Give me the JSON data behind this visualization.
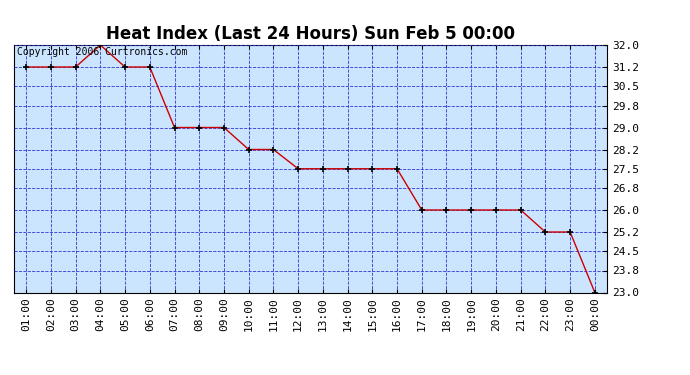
{
  "title": "Heat Index (Last 24 Hours) Sun Feb 5 00:00",
  "copyright": "Copyright 2006 Curtronics.com",
  "x_labels": [
    "01:00",
    "02:00",
    "03:00",
    "04:00",
    "05:00",
    "06:00",
    "07:00",
    "08:00",
    "09:00",
    "10:00",
    "11:00",
    "12:00",
    "13:00",
    "14:00",
    "15:00",
    "16:00",
    "17:00",
    "18:00",
    "19:00",
    "20:00",
    "21:00",
    "22:00",
    "23:00",
    "00:00"
  ],
  "y_values": [
    31.2,
    31.2,
    31.2,
    32.0,
    31.2,
    31.2,
    29.0,
    29.0,
    29.0,
    28.2,
    28.2,
    27.5,
    27.5,
    27.5,
    27.5,
    27.5,
    26.0,
    26.0,
    26.0,
    26.0,
    26.0,
    25.2,
    25.2,
    23.0
  ],
  "line_color": "#cc0000",
  "fig_bg": "#ffffff",
  "plot_bg": "#cce5ff",
  "grid_color": "#3333cc",
  "title_color": "#000000",
  "border_color": "#000000",
  "y_min": 23.0,
  "y_max": 32.0,
  "y_ticks": [
    23.0,
    23.8,
    24.5,
    25.2,
    26.0,
    26.8,
    27.5,
    28.2,
    29.0,
    29.8,
    30.5,
    31.2,
    32.0
  ],
  "title_fontsize": 12,
  "tick_fontsize": 8,
  "copyright_fontsize": 7
}
